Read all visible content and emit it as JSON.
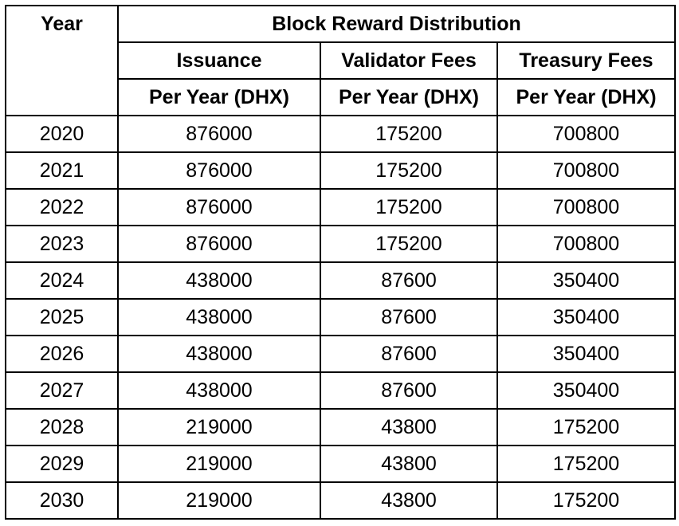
{
  "header": {
    "year": "Year",
    "group": "Block Reward Distribution",
    "issuance": "Issuance",
    "validator_fees": "Validator Fees",
    "treasury_fees": "Treasury Fees",
    "unit_issuance": "Per Year (DHX)",
    "unit_validator": "Per Year (DHX)",
    "unit_treasury": "Per Year (DHX)"
  },
  "rows": [
    {
      "year": "2020",
      "issuance": "876000",
      "validator": "175200",
      "treasury": "700800"
    },
    {
      "year": "2021",
      "issuance": "876000",
      "validator": "175200",
      "treasury": "700800"
    },
    {
      "year": "2022",
      "issuance": "876000",
      "validator": "175200",
      "treasury": "700800"
    },
    {
      "year": "2023",
      "issuance": "876000",
      "validator": "175200",
      "treasury": "700800"
    },
    {
      "year": "2024",
      "issuance": "438000",
      "validator": "87600",
      "treasury": "350400"
    },
    {
      "year": "2025",
      "issuance": "438000",
      "validator": "87600",
      "treasury": "350400"
    },
    {
      "year": "2026",
      "issuance": "438000",
      "validator": "87600",
      "treasury": "350400"
    },
    {
      "year": "2027",
      "issuance": "438000",
      "validator": "87600",
      "treasury": "350400"
    },
    {
      "year": "2028",
      "issuance": "219000",
      "validator": "43800",
      "treasury": "175200"
    },
    {
      "year": "2029",
      "issuance": "219000",
      "validator": "43800",
      "treasury": "175200"
    },
    {
      "year": "2030",
      "issuance": "219000",
      "validator": "43800",
      "treasury": "175200"
    }
  ]
}
